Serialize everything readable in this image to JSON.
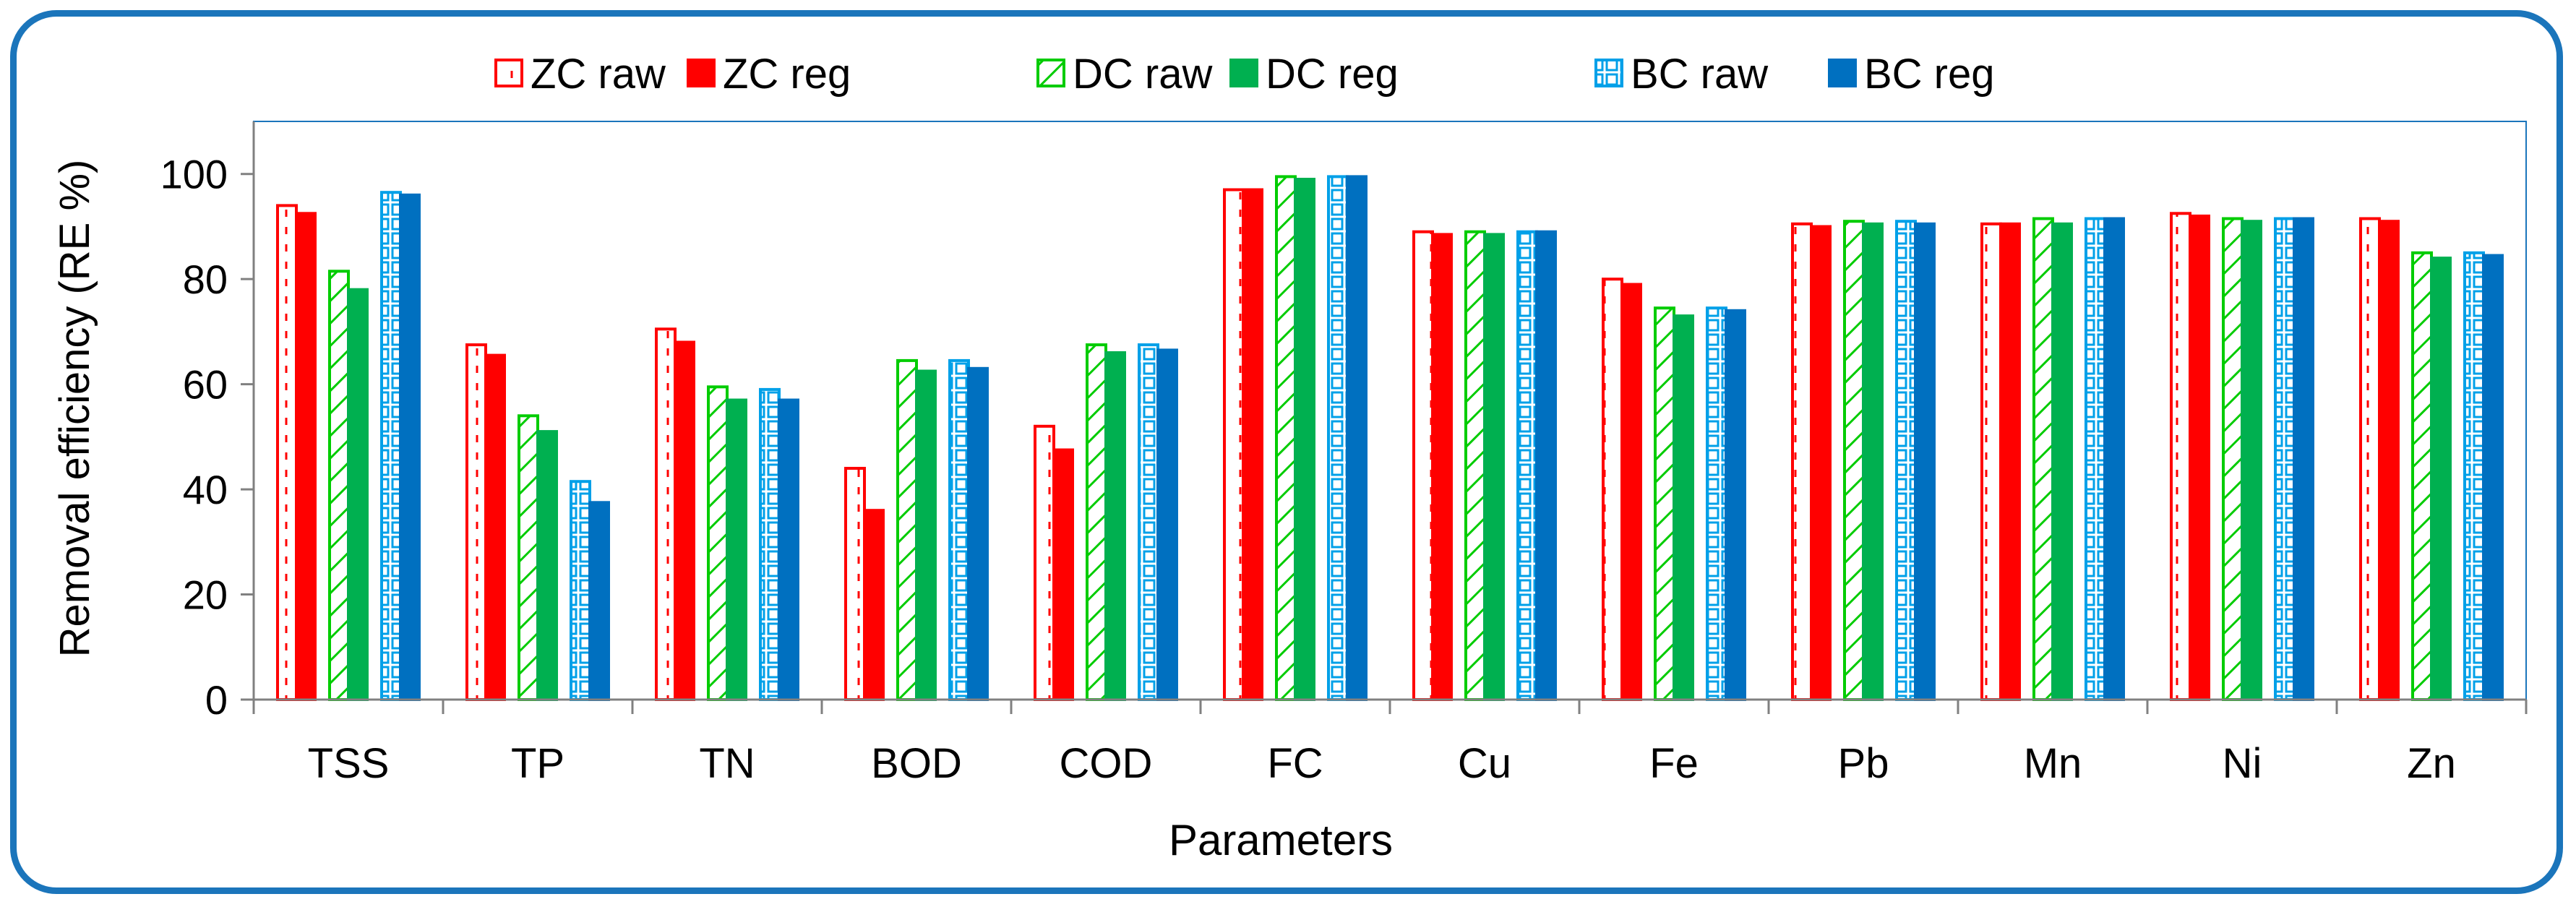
{
  "chart_data": {
    "type": "bar",
    "title": "",
    "xlabel": "Parameters",
    "ylabel": "Removal efficiency (RE %)",
    "ylim": [
      0,
      110
    ],
    "yticks": [
      0,
      20,
      40,
      60,
      80,
      100
    ],
    "grid": false,
    "legend_position": "top",
    "categories": [
      "TSS",
      "TP",
      "TN",
      "BOD",
      "COD",
      "FC",
      "Cu",
      "Fe",
      "Pb",
      "Mn",
      "Ni",
      "Zn"
    ],
    "series": [
      {
        "name": "ZC raw",
        "color": "#ff0000",
        "pattern": "dashed-outline",
        "values": [
          94,
          67.5,
          70.5,
          44,
          52,
          97,
          89,
          80,
          90.5,
          90.5,
          92.5,
          91.5
        ]
      },
      {
        "name": "ZC reg",
        "color": "#ff0000",
        "pattern": "solid",
        "values": [
          92.5,
          65.5,
          68,
          36,
          47.5,
          97,
          88.5,
          79,
          90,
          90.5,
          92,
          91
        ]
      },
      {
        "name": "DC raw",
        "color": "#00cc00",
        "pattern": "diagonal-hatch",
        "values": [
          81.5,
          54,
          59.5,
          64.5,
          67.5,
          99.5,
          89,
          74.5,
          91,
          91.5,
          91.5,
          85
        ]
      },
      {
        "name": "DC reg",
        "color": "#00b050",
        "pattern": "solid",
        "values": [
          78,
          51,
          57,
          62.5,
          66,
          99,
          88.5,
          73,
          90.5,
          90.5,
          91,
          84
        ]
      },
      {
        "name": "BC raw",
        "color": "#00a0e8",
        "pattern": "grid",
        "values": [
          96.5,
          41.5,
          59,
          64.5,
          67.5,
          99.5,
          89,
          74.5,
          91,
          91.5,
          91.5,
          85
        ]
      },
      {
        "name": "BC reg",
        "color": "#0070c0",
        "pattern": "solid",
        "values": [
          96,
          37.5,
          57,
          63,
          66.5,
          99.5,
          89,
          74,
          90.5,
          91.5,
          91.5,
          84.5
        ]
      }
    ]
  }
}
